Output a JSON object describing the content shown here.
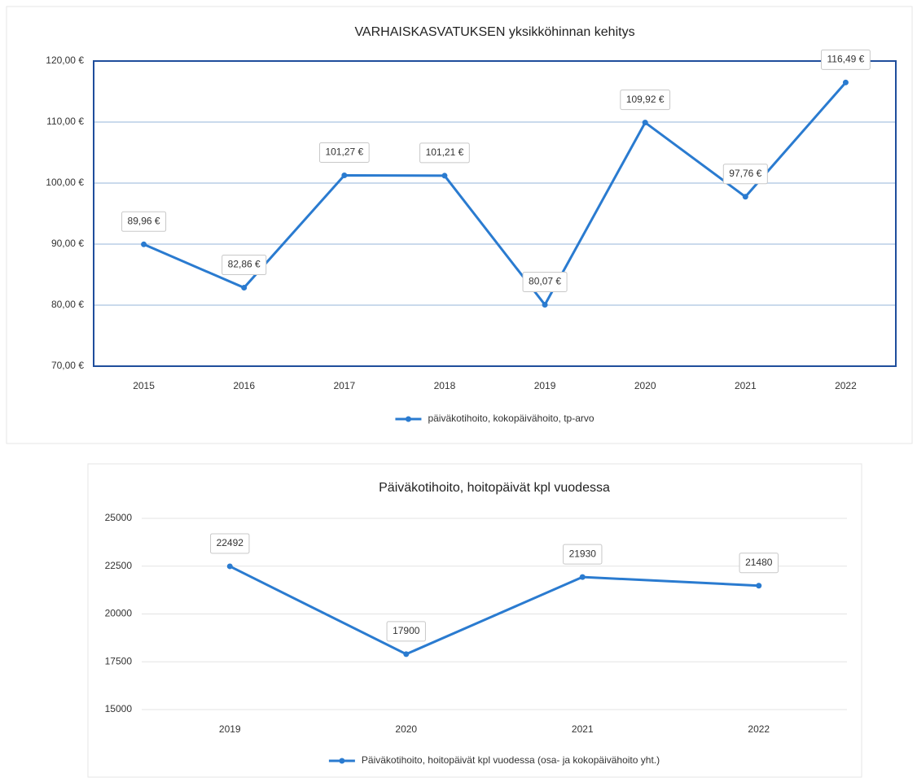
{
  "chart_data": [
    {
      "type": "line",
      "title": "VARHAISKASVATUKSEN yksikköhinnan kehitys",
      "categories": [
        "2015",
        "2016",
        "2017",
        "2018",
        "2019",
        "2020",
        "2021",
        "2022"
      ],
      "series": [
        {
          "name": "päiväkotihoito, kokopäivähoito, tp-arvo",
          "color": "#2a7bd0",
          "values": [
            89.96,
            82.86,
            101.27,
            101.21,
            80.07,
            109.92,
            97.76,
            116.49
          ],
          "value_labels": [
            "89,96 €",
            "82,86 €",
            "101,27 €",
            "101,21 €",
            "80,07 €",
            "109,92 €",
            "97,76 €",
            "116,49 €"
          ]
        }
      ],
      "ylim": [
        70,
        120
      ],
      "yticks": [
        {
          "value": 70,
          "label": "70,00 €"
        },
        {
          "value": 80,
          "label": "80,00 €"
        },
        {
          "value": 90,
          "label": "90,00 €"
        },
        {
          "value": 100,
          "label": "100,00 €"
        },
        {
          "value": 110,
          "label": "110,00 €"
        },
        {
          "value": 120,
          "label": "120,00 €"
        }
      ],
      "grid": true,
      "legend": "bottom"
    },
    {
      "type": "line",
      "title": "Päiväkotihoito, hoitopäivät kpl vuodessa",
      "categories": [
        "2019",
        "2020",
        "2021",
        "2022"
      ],
      "series": [
        {
          "name": "Päiväkotihoito, hoitopäivät kpl vuodessa (osa- ja kokopäivähoito yht.)",
          "color": "#2a7bd0",
          "values": [
            22492,
            17900,
            21930,
            21480
          ]
        }
      ],
      "ylim": [
        15000,
        25000
      ],
      "yticks": [
        15000,
        17500,
        20000,
        22500,
        25000
      ],
      "grid": true,
      "legend": "bottom"
    }
  ]
}
